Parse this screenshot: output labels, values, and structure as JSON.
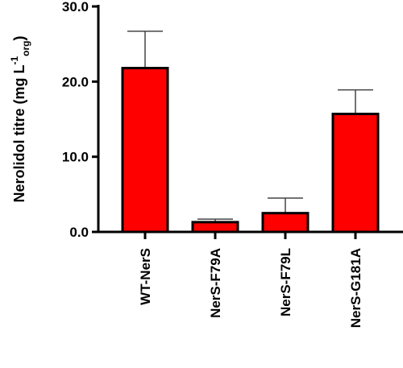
{
  "chart_data": {
    "type": "bar",
    "categories": [
      "WT-NerS",
      "NerS-F79A",
      "NerS-F79L",
      "NerS-G181A"
    ],
    "values": [
      21.8,
      1.3,
      2.5,
      15.7
    ],
    "error_upper": [
      26.7,
      1.7,
      4.5,
      18.9
    ],
    "ylim": [
      0,
      30
    ],
    "yticks": [
      "0.0",
      "10.0",
      "20.0",
      "30.0"
    ],
    "ylabel_main": "Nerolidol titre (mg L",
    "ylabel_sup": "-1",
    "ylabel_sub": "org",
    "ylabel_close": ")",
    "bar_color": "#ff0000",
    "edge_color": "#000000",
    "grid": false,
    "legend": "none"
  }
}
